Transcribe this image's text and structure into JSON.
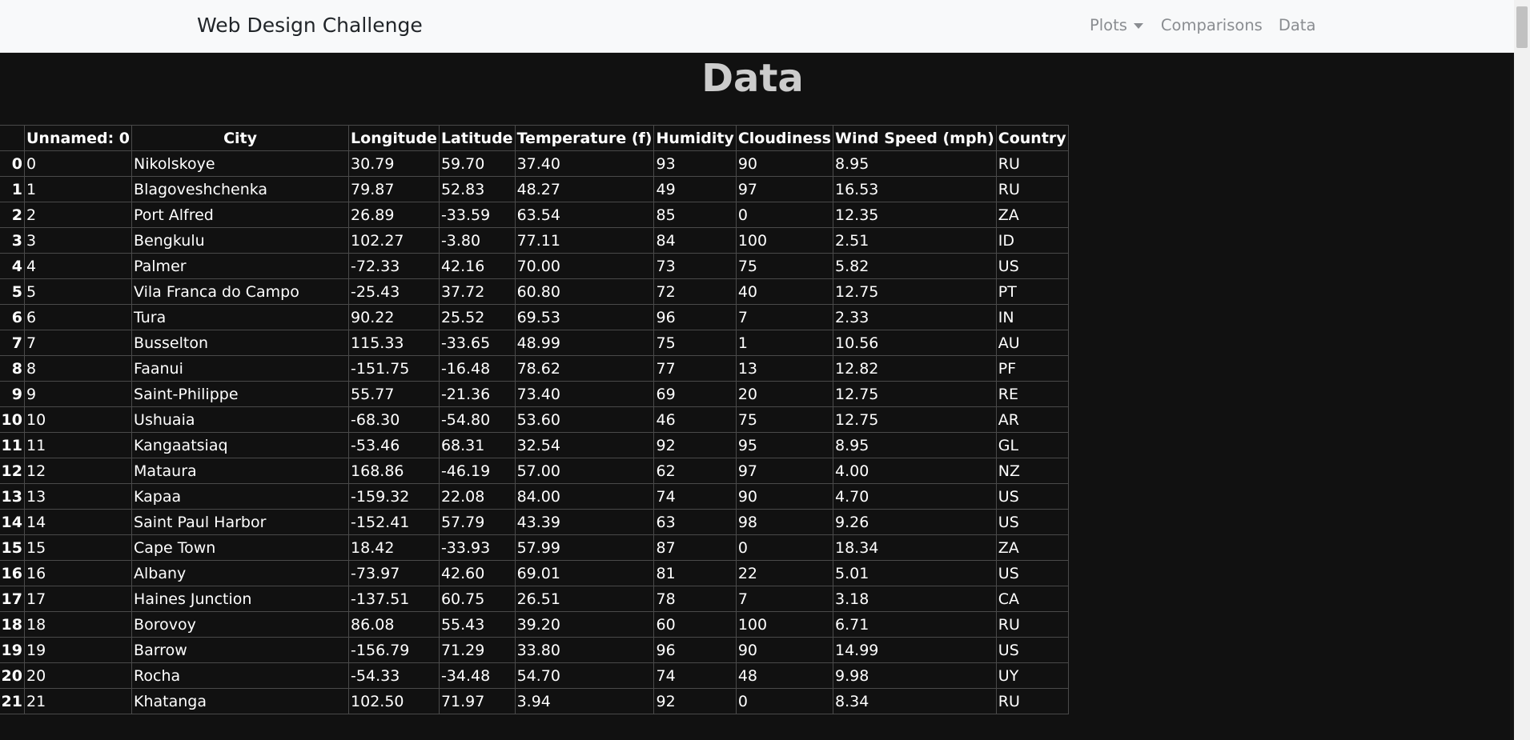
{
  "navbar": {
    "brand": "Web Design Challenge",
    "links": {
      "plots": "Plots",
      "comparisons": "Comparisons",
      "data": "Data"
    }
  },
  "page": {
    "title": "Data"
  },
  "table": {
    "columns": [
      "",
      "Unnamed: 0",
      "City",
      "Longitude",
      "Latitude",
      "Temperature (f)",
      "Humidity",
      "Cloudiness",
      "Wind Speed (mph)",
      "Country"
    ],
    "rows": [
      [
        "0",
        "0",
        "Nikolskoye",
        "30.79",
        "59.70",
        "37.40",
        "93",
        "90",
        "8.95",
        "RU"
      ],
      [
        "1",
        "1",
        "Blagoveshchenka",
        "79.87",
        "52.83",
        "48.27",
        "49",
        "97",
        "16.53",
        "RU"
      ],
      [
        "2",
        "2",
        "Port Alfred",
        "26.89",
        "-33.59",
        "63.54",
        "85",
        "0",
        "12.35",
        "ZA"
      ],
      [
        "3",
        "3",
        "Bengkulu",
        "102.27",
        "-3.80",
        "77.11",
        "84",
        "100",
        "2.51",
        "ID"
      ],
      [
        "4",
        "4",
        "Palmer",
        "-72.33",
        "42.16",
        "70.00",
        "73",
        "75",
        "5.82",
        "US"
      ],
      [
        "5",
        "5",
        "Vila Franca do Campo",
        "-25.43",
        "37.72",
        "60.80",
        "72",
        "40",
        "12.75",
        "PT"
      ],
      [
        "6",
        "6",
        "Tura",
        "90.22",
        "25.52",
        "69.53",
        "96",
        "7",
        "2.33",
        "IN"
      ],
      [
        "7",
        "7",
        "Busselton",
        "115.33",
        "-33.65",
        "48.99",
        "75",
        "1",
        "10.56",
        "AU"
      ],
      [
        "8",
        "8",
        "Faanui",
        "-151.75",
        "-16.48",
        "78.62",
        "77",
        "13",
        "12.82",
        "PF"
      ],
      [
        "9",
        "9",
        "Saint-Philippe",
        "55.77",
        "-21.36",
        "73.40",
        "69",
        "20",
        "12.75",
        "RE"
      ],
      [
        "10",
        "10",
        "Ushuaia",
        "-68.30",
        "-54.80",
        "53.60",
        "46",
        "75",
        "12.75",
        "AR"
      ],
      [
        "11",
        "11",
        "Kangaatsiaq",
        "-53.46",
        "68.31",
        "32.54",
        "92",
        "95",
        "8.95",
        "GL"
      ],
      [
        "12",
        "12",
        "Mataura",
        "168.86",
        "-46.19",
        "57.00",
        "62",
        "97",
        "4.00",
        "NZ"
      ],
      [
        "13",
        "13",
        "Kapaa",
        "-159.32",
        "22.08",
        "84.00",
        "74",
        "90",
        "4.70",
        "US"
      ],
      [
        "14",
        "14",
        "Saint Paul Harbor",
        "-152.41",
        "57.79",
        "43.39",
        "63",
        "98",
        "9.26",
        "US"
      ],
      [
        "15",
        "15",
        "Cape Town",
        "18.42",
        "-33.93",
        "57.99",
        "87",
        "0",
        "18.34",
        "ZA"
      ],
      [
        "16",
        "16",
        "Albany",
        "-73.97",
        "42.60",
        "69.01",
        "81",
        "22",
        "5.01",
        "US"
      ],
      [
        "17",
        "17",
        "Haines Junction",
        "-137.51",
        "60.75",
        "26.51",
        "78",
        "7",
        "3.18",
        "CA"
      ],
      [
        "18",
        "18",
        "Borovoy",
        "86.08",
        "55.43",
        "39.20",
        "60",
        "100",
        "6.71",
        "RU"
      ],
      [
        "19",
        "19",
        "Barrow",
        "-156.79",
        "71.29",
        "33.80",
        "96",
        "90",
        "14.99",
        "US"
      ],
      [
        "20",
        "20",
        "Rocha",
        "-54.33",
        "-34.48",
        "54.70",
        "74",
        "48",
        "9.98",
        "UY"
      ],
      [
        "21",
        "21",
        "Khatanga",
        "102.50",
        "71.97",
        "3.94",
        "92",
        "0",
        "8.34",
        "RU"
      ]
    ]
  },
  "colors": {
    "page_background": "#111111",
    "navbar_background": "#f8f9fa",
    "title_text": "#cccccc",
    "table_text": "#ffffff",
    "nav_link": "#8a8d91"
  }
}
